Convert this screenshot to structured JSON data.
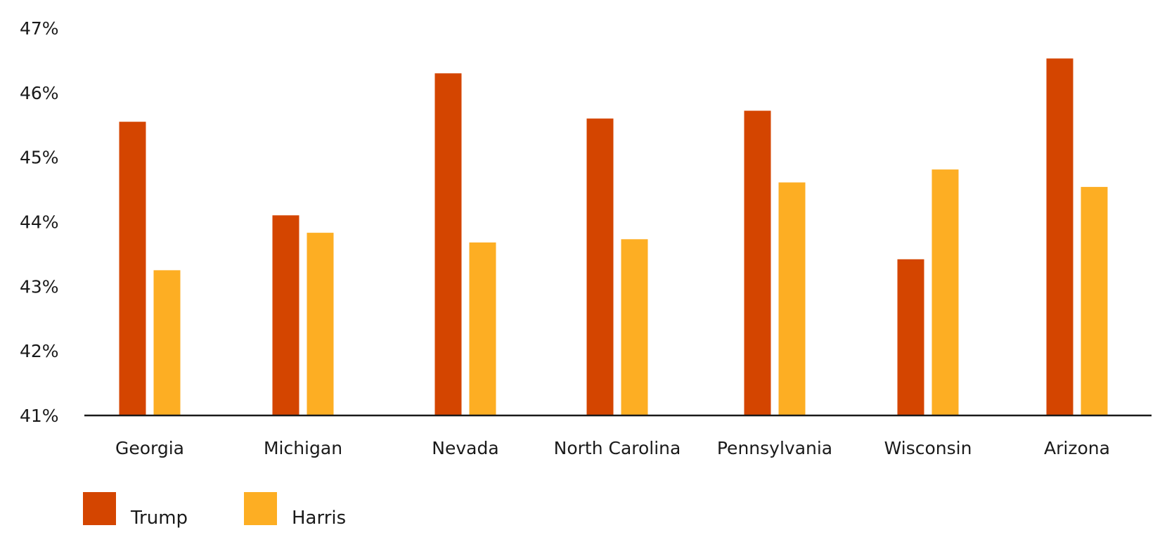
{
  "chart_data": {
    "type": "bar",
    "categories": [
      "Georgia",
      "Michigan",
      "Nevada",
      "North Carolina",
      "Pennsylvania",
      "Wisconsin",
      "Arizona"
    ],
    "series": [
      {
        "name": "Trump",
        "color": "#d44500",
        "values": [
          45.55,
          44.1,
          46.3,
          45.6,
          45.72,
          43.42,
          46.53
        ]
      },
      {
        "name": "Harris",
        "color": "#fdae23",
        "values": [
          43.25,
          43.83,
          43.68,
          43.73,
          44.61,
          44.81,
          44.54
        ]
      }
    ],
    "title": "",
    "xlabel": "",
    "ylabel": "",
    "ylim": [
      41,
      47
    ],
    "yticks": [
      "47%",
      "46%",
      "45%",
      "44%",
      "43%",
      "42%",
      "41%"
    ],
    "grid": false,
    "legend": "bottom-left"
  }
}
